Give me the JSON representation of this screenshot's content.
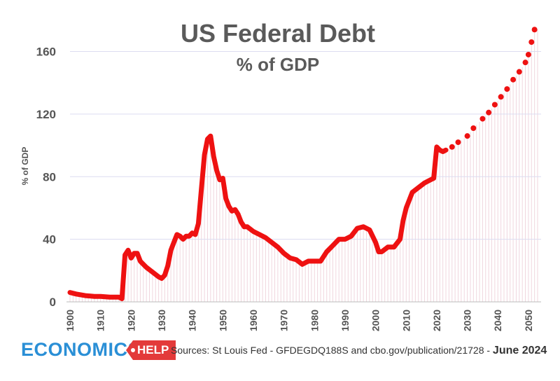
{
  "chart_data": {
    "type": "line",
    "title": "US Federal Debt",
    "subtitle": "% of GDP",
    "ylabel": "% of GDP",
    "xlabel": "",
    "xlim": [
      1900,
      2053
    ],
    "ylim": [
      0,
      175
    ],
    "yticks": [
      0,
      40,
      80,
      120,
      160
    ],
    "xticks": [
      1900,
      1910,
      1920,
      1930,
      1940,
      1950,
      1960,
      1970,
      1980,
      1990,
      2000,
      2010,
      2020,
      2030,
      2040,
      2050
    ],
    "grid": true,
    "colors": {
      "line": "#ee1111",
      "grid": "#dcdcf0",
      "hatch": "#f0d6de"
    },
    "series": [
      {
        "style": "solid",
        "x": [
          1900,
          1902,
          1905,
          1908,
          1910,
          1913,
          1916,
          1917,
          1918,
          1919,
          1920,
          1921,
          1922,
          1923,
          1924,
          1925,
          1927,
          1929,
          1930,
          1931,
          1932,
          1933,
          1934,
          1935,
          1936,
          1937,
          1938,
          1939,
          1940,
          1941,
          1942,
          1943,
          1944,
          1945,
          1946,
          1947,
          1948,
          1949,
          1950,
          1951,
          1952,
          1953,
          1954,
          1955,
          1956,
          1957,
          1958,
          1960,
          1962,
          1964,
          1966,
          1968,
          1970,
          1972,
          1974,
          1976,
          1978,
          1980,
          1982,
          1984,
          1986,
          1988,
          1990,
          1992,
          1994,
          1996,
          1998,
          2000,
          2001,
          2002,
          2004,
          2006,
          2008,
          2009,
          2010,
          2012,
          2014,
          2016,
          2018,
          2019,
          2020,
          2021,
          2022,
          2023
        ],
        "values": [
          6,
          5,
          4,
          3.5,
          3.5,
          3,
          3,
          2,
          30,
          33,
          28,
          31,
          31,
          26,
          24,
          22,
          19,
          16,
          15,
          17,
          23,
          33,
          38,
          43,
          42,
          40,
          42,
          42,
          44,
          43,
          50,
          72,
          94,
          104,
          106,
          93,
          84,
          78,
          79,
          66,
          61,
          58,
          59,
          56,
          51,
          48,
          48,
          45,
          43,
          41,
          38,
          35,
          31,
          28,
          27,
          24,
          26,
          26,
          26,
          32,
          36,
          40,
          40,
          42,
          47,
          48,
          46,
          38,
          32,
          32,
          35,
          35,
          40,
          52,
          60,
          70,
          73,
          76,
          78,
          79,
          99,
          97,
          96,
          97
        ]
      },
      {
        "style": "dotted",
        "x": [
          2025,
          2027,
          2030,
          2032,
          2035,
          2037,
          2039,
          2041,
          2043,
          2045,
          2047,
          2049,
          2050,
          2051,
          2052
        ],
        "values": [
          99,
          102,
          106,
          111,
          117,
          121,
          126,
          131,
          136,
          142,
          147,
          153,
          158,
          166,
          174
        ]
      }
    ]
  },
  "footer": {
    "brand": "ECONOMICS",
    "brand_tag": "HELP",
    "source": "Sources: St Louis Fed - GFDEGDQ188S and cbo.gov/publication/21728 - ",
    "date": "June 2024"
  }
}
